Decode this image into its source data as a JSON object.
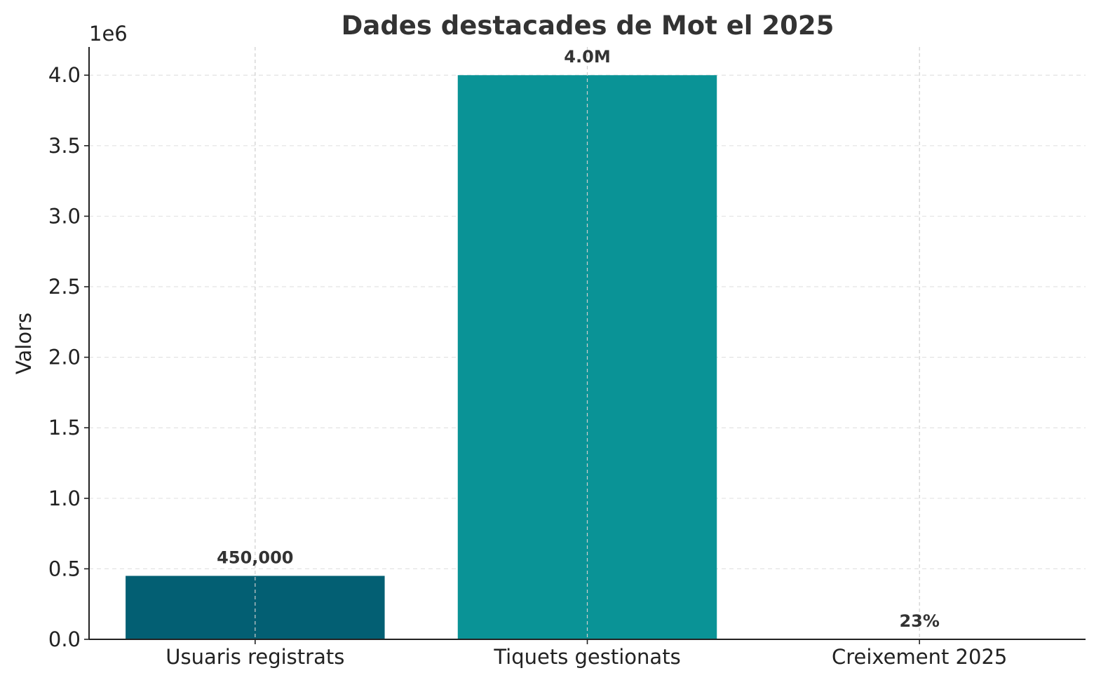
{
  "chart_data": {
    "type": "bar",
    "title": "Dades destacades de Mot el 2025",
    "ylabel": "Valors",
    "xlabel": "",
    "offset_label": "1e6",
    "categories": [
      "Usuaris registrats",
      "Tiquets gestionats",
      "Creixement 2025"
    ],
    "values": [
      450000,
      4000000,
      23
    ],
    "data_labels": [
      "450,000",
      "4.0M",
      "23%"
    ],
    "colors": [
      "#035f73",
      "#0a9396",
      "#2a9d8f"
    ],
    "ylim": [
      0,
      4200000
    ],
    "yticks": [
      0,
      500000,
      1000000,
      1500000,
      2000000,
      2500000,
      3000000,
      3500000,
      4000000
    ],
    "ytick_labels": [
      "0.0",
      "0.5",
      "1.0",
      "1.5",
      "2.0",
      "2.5",
      "3.0",
      "3.5",
      "4.0"
    ],
    "grid": true
  }
}
